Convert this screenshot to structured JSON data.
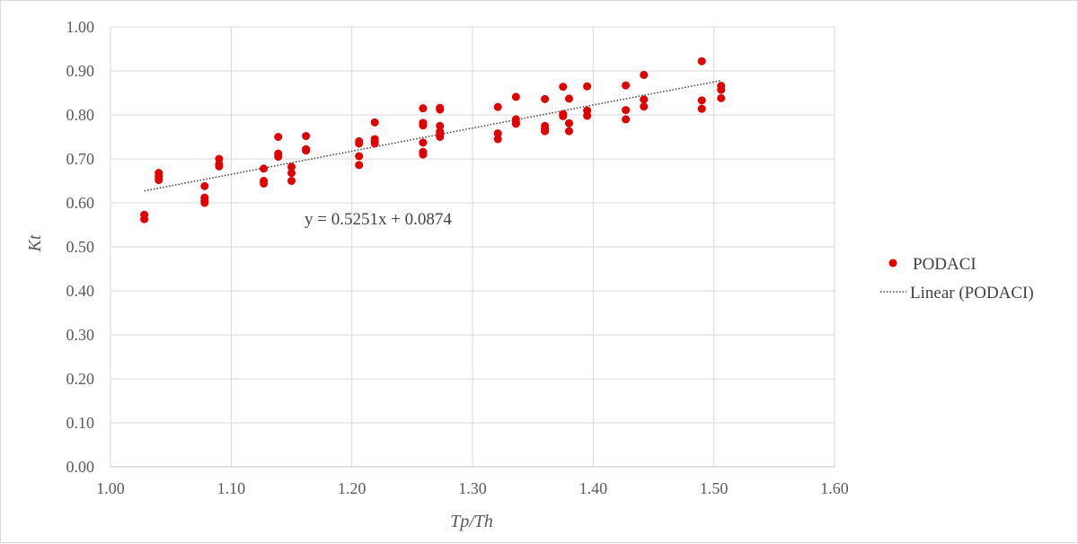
{
  "chart_data": {
    "type": "scatter",
    "title": "",
    "xlabel": "Tp/Th",
    "ylabel": "Kt",
    "xlim": [
      1.0,
      1.6
    ],
    "ylim": [
      0.0,
      1.0
    ],
    "x_ticks": [
      "1.00",
      "1.10",
      "1.20",
      "1.30",
      "1.40",
      "1.50",
      "1.60"
    ],
    "y_ticks": [
      "0.00",
      "0.10",
      "0.20",
      "0.30",
      "0.40",
      "0.50",
      "0.60",
      "0.70",
      "0.80",
      "0.90",
      "1.00"
    ],
    "grid": true,
    "legend_position": "right",
    "series": [
      {
        "name": "PODACI",
        "marker": "circle",
        "color": "#e00000",
        "points": [
          [
            1.028,
            0.573
          ],
          [
            1.028,
            0.563
          ],
          [
            1.04,
            0.668
          ],
          [
            1.04,
            0.66
          ],
          [
            1.04,
            0.652
          ],
          [
            1.078,
            0.638
          ],
          [
            1.078,
            0.612
          ],
          [
            1.078,
            0.605
          ],
          [
            1.078,
            0.6
          ],
          [
            1.09,
            0.7
          ],
          [
            1.09,
            0.688
          ],
          [
            1.09,
            0.683
          ],
          [
            1.127,
            0.678
          ],
          [
            1.127,
            0.65
          ],
          [
            1.127,
            0.644
          ],
          [
            1.139,
            0.75
          ],
          [
            1.139,
            0.712
          ],
          [
            1.139,
            0.705
          ],
          [
            1.15,
            0.682
          ],
          [
            1.15,
            0.668
          ],
          [
            1.15,
            0.65
          ],
          [
            1.162,
            0.752
          ],
          [
            1.162,
            0.722
          ],
          [
            1.162,
            0.719
          ],
          [
            1.206,
            0.74
          ],
          [
            1.206,
            0.735
          ],
          [
            1.206,
            0.706
          ],
          [
            1.206,
            0.686
          ],
          [
            1.219,
            0.783
          ],
          [
            1.219,
            0.745
          ],
          [
            1.219,
            0.74
          ],
          [
            1.219,
            0.735
          ],
          [
            1.259,
            0.815
          ],
          [
            1.259,
            0.782
          ],
          [
            1.259,
            0.776
          ],
          [
            1.259,
            0.737
          ],
          [
            1.259,
            0.716
          ],
          [
            1.259,
            0.71
          ],
          [
            1.273,
            0.816
          ],
          [
            1.273,
            0.812
          ],
          [
            1.273,
            0.775
          ],
          [
            1.273,
            0.762
          ],
          [
            1.273,
            0.755
          ],
          [
            1.273,
            0.75
          ],
          [
            1.321,
            0.818
          ],
          [
            1.321,
            0.758
          ],
          [
            1.321,
            0.745
          ],
          [
            1.336,
            0.841
          ],
          [
            1.336,
            0.79
          ],
          [
            1.336,
            0.783
          ],
          [
            1.336,
            0.78
          ],
          [
            1.36,
            0.836
          ],
          [
            1.36,
            0.775
          ],
          [
            1.36,
            0.768
          ],
          [
            1.36,
            0.763
          ],
          [
            1.375,
            0.864
          ],
          [
            1.375,
            0.802
          ],
          [
            1.375,
            0.797
          ],
          [
            1.38,
            0.837
          ],
          [
            1.38,
            0.781
          ],
          [
            1.38,
            0.763
          ],
          [
            1.395,
            0.865
          ],
          [
            1.395,
            0.81
          ],
          [
            1.395,
            0.798
          ],
          [
            1.427,
            0.867
          ],
          [
            1.427,
            0.811
          ],
          [
            1.427,
            0.79
          ],
          [
            1.442,
            0.891
          ],
          [
            1.442,
            0.835
          ],
          [
            1.442,
            0.819
          ],
          [
            1.49,
            0.922
          ],
          [
            1.49,
            0.833
          ],
          [
            1.49,
            0.814
          ],
          [
            1.506,
            0.866
          ],
          [
            1.506,
            0.857
          ],
          [
            1.506,
            0.838
          ]
        ]
      },
      {
        "name": "Linear (PODACI)",
        "type": "line",
        "style": "dotted",
        "color": "#404040",
        "slope": 0.5251,
        "intercept": 0.0874,
        "x_range": [
          1.028,
          1.506
        ]
      }
    ],
    "annotations": [
      {
        "text": "y = 0.5251x + 0.0874"
      }
    ]
  }
}
